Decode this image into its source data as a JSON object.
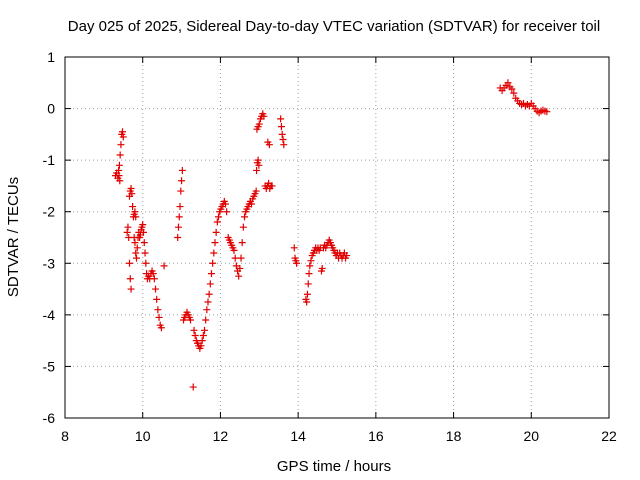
{
  "chart_data": {
    "type": "scatter",
    "title": "Day 025 of 2025, Sidereal Day-to-day VTEC variation (SDTVAR) for receiver toil",
    "xlabel": "GPS time / hours",
    "ylabel": "SDTVAR / TECUs",
    "xlim": [
      8,
      22
    ],
    "ylim": [
      -6,
      1
    ],
    "xticks": [
      8,
      10,
      12,
      14,
      16,
      18,
      20,
      22
    ],
    "yticks": [
      -6,
      -5,
      -4,
      -3,
      -2,
      -1,
      0,
      1
    ],
    "grid": true,
    "marker": "+",
    "color": "#e00000",
    "series": [
      {
        "name": "SDTVAR",
        "points": [
          [
            9.3,
            -1.3
          ],
          [
            9.33,
            -1.25
          ],
          [
            9.36,
            -1.35
          ],
          [
            9.38,
            -1.2
          ],
          [
            9.4,
            -1.1
          ],
          [
            9.42,
            -0.9
          ],
          [
            9.44,
            -0.7
          ],
          [
            9.46,
            -0.5
          ],
          [
            9.48,
            -0.45
          ],
          [
            9.5,
            -0.55
          ],
          [
            9.41,
            -1.4
          ],
          [
            9.39,
            -1.3
          ],
          [
            9.6,
            -2.4
          ],
          [
            9.62,
            -2.3
          ],
          [
            9.64,
            -2.5
          ],
          [
            9.66,
            -3.0
          ],
          [
            9.68,
            -3.3
          ],
          [
            9.7,
            -3.5
          ],
          [
            9.66,
            -1.7
          ],
          [
            9.68,
            -1.6
          ],
          [
            9.7,
            -1.55
          ],
          [
            9.72,
            -1.65
          ],
          [
            9.74,
            -1.9
          ],
          [
            9.76,
            -2.1
          ],
          [
            9.78,
            -2.05
          ],
          [
            9.8,
            -2.0
          ],
          [
            9.82,
            -2.1
          ],
          [
            9.78,
            -2.5
          ],
          [
            9.8,
            -2.6
          ],
          [
            9.82,
            -2.8
          ],
          [
            9.84,
            -2.9
          ],
          [
            9.86,
            -2.7
          ],
          [
            9.88,
            -2.5
          ],
          [
            9.9,
            -2.4
          ],
          [
            9.92,
            -2.5
          ],
          [
            9.94,
            -2.45
          ],
          [
            9.96,
            -2.35
          ],
          [
            9.98,
            -2.3
          ],
          [
            10.0,
            -2.25
          ],
          [
            10.02,
            -2.4
          ],
          [
            10.04,
            -2.6
          ],
          [
            10.06,
            -2.8
          ],
          [
            10.08,
            -3.0
          ],
          [
            10.1,
            -3.2
          ],
          [
            10.12,
            -3.3
          ],
          [
            10.15,
            -3.25
          ],
          [
            10.18,
            -3.3
          ],
          [
            10.21,
            -3.2
          ],
          [
            10.24,
            -3.15
          ],
          [
            10.27,
            -3.2
          ],
          [
            10.3,
            -3.3
          ],
          [
            10.33,
            -3.5
          ],
          [
            10.36,
            -3.7
          ],
          [
            10.39,
            -3.9
          ],
          [
            10.42,
            -4.05
          ],
          [
            10.45,
            -4.2
          ],
          [
            10.48,
            -4.25
          ],
          [
            10.55,
            -3.05
          ],
          [
            10.9,
            -2.5
          ],
          [
            10.92,
            -2.3
          ],
          [
            10.94,
            -2.1
          ],
          [
            10.96,
            -1.9
          ],
          [
            10.98,
            -1.6
          ],
          [
            11.0,
            -1.4
          ],
          [
            11.02,
            -1.2
          ],
          [
            11.05,
            -4.1
          ],
          [
            11.08,
            -4.05
          ],
          [
            11.11,
            -4.0
          ],
          [
            11.14,
            -3.95
          ],
          [
            11.17,
            -4.0
          ],
          [
            11.2,
            -4.05
          ],
          [
            11.23,
            -4.1
          ],
          [
            11.3,
            -5.4
          ],
          [
            11.32,
            -4.3
          ],
          [
            11.35,
            -4.4
          ],
          [
            11.38,
            -4.5
          ],
          [
            11.41,
            -4.55
          ],
          [
            11.44,
            -4.6
          ],
          [
            11.47,
            -4.65
          ],
          [
            11.5,
            -4.6
          ],
          [
            11.53,
            -4.5
          ],
          [
            11.56,
            -4.4
          ],
          [
            11.59,
            -4.3
          ],
          [
            11.62,
            -4.1
          ],
          [
            11.65,
            -3.9
          ],
          [
            11.68,
            -3.75
          ],
          [
            11.71,
            -3.6
          ],
          [
            11.74,
            -3.4
          ],
          [
            11.77,
            -3.2
          ],
          [
            11.8,
            -3.0
          ],
          [
            11.83,
            -2.8
          ],
          [
            11.86,
            -2.6
          ],
          [
            11.89,
            -2.4
          ],
          [
            11.92,
            -2.2
          ],
          [
            11.95,
            -2.1
          ],
          [
            11.98,
            -2.0
          ],
          [
            12.01,
            -1.95
          ],
          [
            12.04,
            -1.9
          ],
          [
            12.07,
            -1.85
          ],
          [
            12.1,
            -1.8
          ],
          [
            12.13,
            -1.85
          ],
          [
            12.16,
            -2.0
          ],
          [
            12.2,
            -2.5
          ],
          [
            12.23,
            -2.55
          ],
          [
            12.26,
            -2.6
          ],
          [
            12.29,
            -2.65
          ],
          [
            12.32,
            -2.7
          ],
          [
            12.35,
            -2.75
          ],
          [
            12.38,
            -2.9
          ],
          [
            12.41,
            -3.05
          ],
          [
            12.44,
            -3.15
          ],
          [
            12.47,
            -3.25
          ],
          [
            12.5,
            -3.1
          ],
          [
            12.53,
            -2.9
          ],
          [
            12.56,
            -2.6
          ],
          [
            12.59,
            -2.3
          ],
          [
            12.62,
            -2.1
          ],
          [
            12.65,
            -2.0
          ],
          [
            12.68,
            -1.95
          ],
          [
            12.71,
            -1.9
          ],
          [
            12.74,
            -1.85
          ],
          [
            12.77,
            -1.8
          ],
          [
            12.8,
            -1.85
          ],
          [
            12.83,
            -1.75
          ],
          [
            12.86,
            -1.7
          ],
          [
            12.89,
            -1.65
          ],
          [
            12.92,
            -1.6
          ],
          [
            12.93,
            -1.2
          ],
          [
            12.95,
            -1.05
          ],
          [
            12.97,
            -1.0
          ],
          [
            12.99,
            -1.1
          ],
          [
            12.94,
            -0.4
          ],
          [
            12.97,
            -0.35
          ],
          [
            13.0,
            -0.3
          ],
          [
            13.03,
            -0.2
          ],
          [
            13.06,
            -0.15
          ],
          [
            13.09,
            -0.1
          ],
          [
            13.12,
            -0.15
          ],
          [
            13.15,
            -1.5
          ],
          [
            13.18,
            -1.55
          ],
          [
            13.21,
            -1.5
          ],
          [
            13.24,
            -1.45
          ],
          [
            13.27,
            -1.55
          ],
          [
            13.3,
            -1.5
          ],
          [
            13.33,
            -1.5
          ],
          [
            13.22,
            -0.65
          ],
          [
            13.26,
            -0.7
          ],
          [
            13.55,
            -0.2
          ],
          [
            13.57,
            -0.35
          ],
          [
            13.59,
            -0.5
          ],
          [
            13.61,
            -0.6
          ],
          [
            13.63,
            -0.7
          ],
          [
            13.9,
            -2.7
          ],
          [
            13.92,
            -2.9
          ],
          [
            13.94,
            -2.95
          ],
          [
            13.96,
            -3.0
          ],
          [
            14.2,
            -3.7
          ],
          [
            14.22,
            -3.75
          ],
          [
            14.24,
            -3.6
          ],
          [
            14.26,
            -3.4
          ],
          [
            14.28,
            -3.2
          ],
          [
            14.3,
            -3.05
          ],
          [
            14.33,
            -2.95
          ],
          [
            14.36,
            -2.85
          ],
          [
            14.39,
            -2.8
          ],
          [
            14.42,
            -2.75
          ],
          [
            14.45,
            -2.7
          ],
          [
            14.48,
            -2.75
          ],
          [
            14.51,
            -2.7
          ],
          [
            14.54,
            -2.75
          ],
          [
            14.57,
            -2.7
          ],
          [
            14.6,
            -3.15
          ],
          [
            14.62,
            -3.1
          ],
          [
            14.65,
            -2.7
          ],
          [
            14.68,
            -2.65
          ],
          [
            14.71,
            -2.7
          ],
          [
            14.74,
            -2.65
          ],
          [
            14.77,
            -2.6
          ],
          [
            14.8,
            -2.55
          ],
          [
            14.83,
            -2.6
          ],
          [
            14.86,
            -2.65
          ],
          [
            14.89,
            -2.7
          ],
          [
            14.92,
            -2.75
          ],
          [
            14.95,
            -2.8
          ],
          [
            14.98,
            -2.85
          ],
          [
            15.01,
            -2.8
          ],
          [
            15.04,
            -2.9
          ],
          [
            15.07,
            -2.8
          ],
          [
            15.1,
            -2.85
          ],
          [
            15.13,
            -2.9
          ],
          [
            15.16,
            -2.85
          ],
          [
            15.19,
            -2.8
          ],
          [
            15.22,
            -2.9
          ],
          [
            15.25,
            -2.85
          ],
          [
            19.2,
            0.4
          ],
          [
            19.25,
            0.35
          ],
          [
            19.3,
            0.4
          ],
          [
            19.35,
            0.45
          ],
          [
            19.4,
            0.5
          ],
          [
            19.45,
            0.42
          ],
          [
            19.5,
            0.38
          ],
          [
            19.55,
            0.3
          ],
          [
            19.6,
            0.2
          ],
          [
            19.65,
            0.15
          ],
          [
            19.7,
            0.1
          ],
          [
            19.75,
            0.08
          ],
          [
            19.8,
            0.1
          ],
          [
            19.85,
            0.05
          ],
          [
            19.9,
            0.08
          ],
          [
            19.95,
            0.05
          ],
          [
            20.0,
            0.1
          ],
          [
            20.05,
            0.05
          ],
          [
            20.1,
            0.0
          ],
          [
            20.15,
            -0.05
          ],
          [
            20.2,
            -0.08
          ],
          [
            20.25,
            -0.05
          ],
          [
            20.3,
            -0.03
          ],
          [
            20.35,
            -0.05
          ],
          [
            20.4,
            -0.06
          ]
        ]
      }
    ]
  }
}
